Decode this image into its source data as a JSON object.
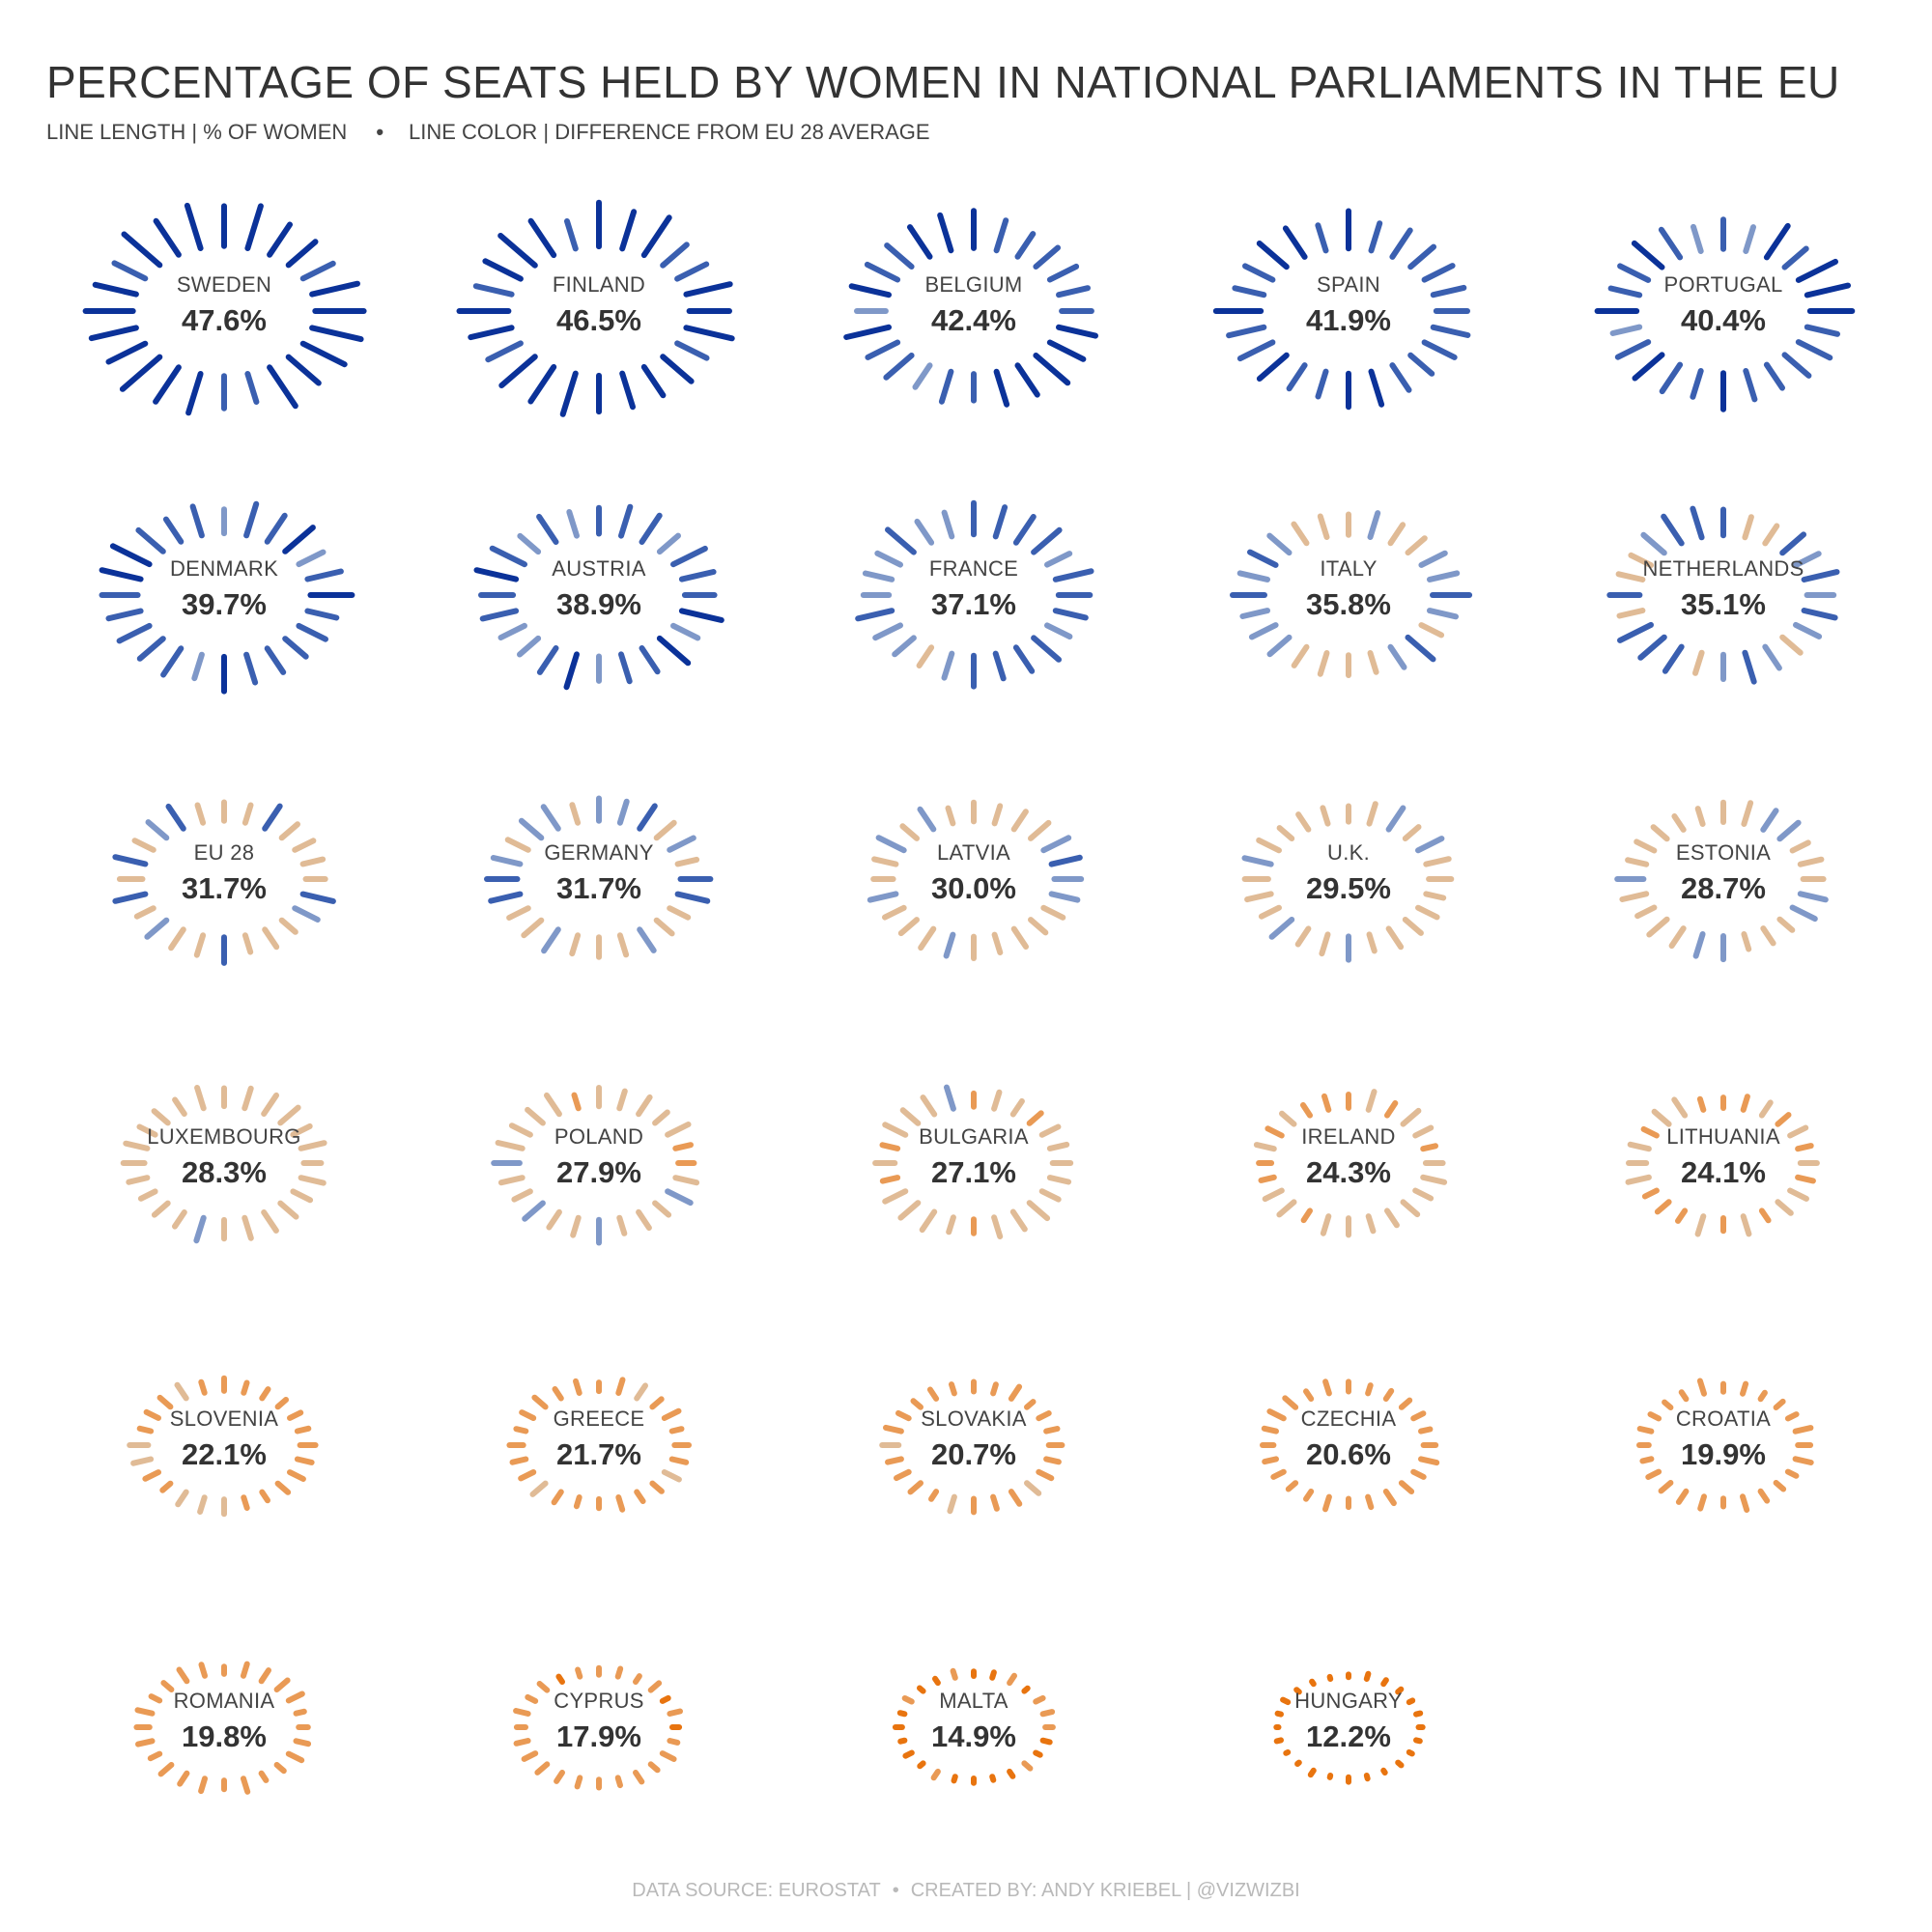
{
  "header": {
    "title": "PERCENTAGE OF SEATS HELD BY WOMEN IN NATIONAL PARLIAMENTS IN THE EU",
    "subtitle_length": "LINE LENGTH | % OF WOMEN",
    "subtitle_sep": "•",
    "subtitle_color": "LINE COLOR | DIFFERENCE FROM EU 28 AVERAGE"
  },
  "footer": {
    "source": "DATA SOURCE: EUROSTAT",
    "sep": "•",
    "credit": "CREATED BY: ANDY KRIEBEL | @VIZWIZBI"
  },
  "colors": {
    "far_above": "#0b3299",
    "above": "#3a5fb0",
    "slightly_above": "#7f98c8",
    "slightly_below": "#e0bb96",
    "below": "#e99a55",
    "far_below": "#e8740f"
  },
  "chart_data": {
    "type": "radial",
    "reference": "EU 28",
    "countries": [
      {
        "name": "SWEDEN",
        "label": "47.6%",
        "value": 47.6
      },
      {
        "name": "FINLAND",
        "label": "46.5%",
        "value": 46.5
      },
      {
        "name": "BELGIUM",
        "label": "42.4%",
        "value": 42.4
      },
      {
        "name": "SPAIN",
        "label": "41.9%",
        "value": 41.9
      },
      {
        "name": "PORTUGAL",
        "label": "40.4%",
        "value": 40.4
      },
      {
        "name": "DENMARK",
        "label": "39.7%",
        "value": 39.7
      },
      {
        "name": "AUSTRIA",
        "label": "38.9%",
        "value": 38.9
      },
      {
        "name": "FRANCE",
        "label": "37.1%",
        "value": 37.1
      },
      {
        "name": "ITALY",
        "label": "35.8%",
        "value": 35.8
      },
      {
        "name": "NETHERLANDS",
        "label": "35.1%",
        "value": 35.1
      },
      {
        "name": "EU 28",
        "label": "31.7%",
        "value": 31.7
      },
      {
        "name": "GERMANY",
        "label": "31.7%",
        "value": 31.7
      },
      {
        "name": "LATVIA",
        "label": "30.0%",
        "value": 30.0
      },
      {
        "name": "U.K.",
        "label": "29.5%",
        "value": 29.5
      },
      {
        "name": "ESTONIA",
        "label": "28.7%",
        "value": 28.7
      },
      {
        "name": "LUXEMBOURG",
        "label": "28.3%",
        "value": 28.3
      },
      {
        "name": "POLAND",
        "label": "27.9%",
        "value": 27.9
      },
      {
        "name": "BULGARIA",
        "label": "27.1%",
        "value": 27.1
      },
      {
        "name": "IRELAND",
        "label": "24.3%",
        "value": 24.3
      },
      {
        "name": "LITHUANIA",
        "label": "24.1%",
        "value": 24.1
      },
      {
        "name": "SLOVENIA",
        "label": "22.1%",
        "value": 22.1
      },
      {
        "name": "GREECE",
        "label": "21.7%",
        "value": 21.7
      },
      {
        "name": "SLOVAKIA",
        "label": "20.7%",
        "value": 20.7
      },
      {
        "name": "CZECHIA",
        "label": "20.6%",
        "value": 20.6
      },
      {
        "name": "CROATIA",
        "label": "19.9%",
        "value": 19.9
      },
      {
        "name": "ROMANIA",
        "label": "19.8%",
        "value": 19.8
      },
      {
        "name": "CYPRUS",
        "label": "17.9%",
        "value": 17.9
      },
      {
        "name": "MALTA",
        "label": "14.9%",
        "value": 14.9
      },
      {
        "name": "HUNGARY",
        "label": "12.2%",
        "value": 12.2
      }
    ]
  }
}
